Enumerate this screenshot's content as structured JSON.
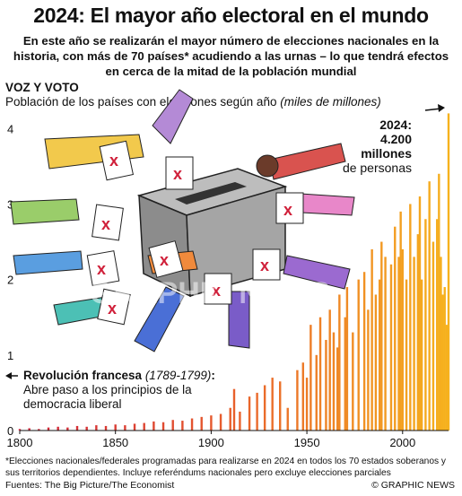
{
  "header": {
    "title": "2024: El mayor año electoral en el mundo",
    "subtitle": "En este año se realizarán el mayor número de elecciones nacionales en la historia, con más de 70 países* acudiendo a las urnas – lo que tendrá efectos en cerca de la mitad de la población mundial"
  },
  "section": {
    "label": "VOZ Y VOTO",
    "caption_main": "Población de los países con elecciones según año",
    "caption_unit": "(miles de millones)"
  },
  "annotations": {
    "y2024_head": "2024:",
    "y2024_value": "4.200",
    "y2024_unit": "millones",
    "y2024_tail": "de personas",
    "revolution_title": "Revolución francesa",
    "revolution_years": "(1789-1799)",
    "revolution_colon": ":",
    "revolution_text_1": "Abre paso a los principios de la",
    "revolution_text_2": "democracia liberal"
  },
  "footer": {
    "footnote": "*Elecciones nacionales/federales programadas para realizarse en 2024 en todos los 70 estados soberanos y sus territorios dependientes. Incluye referéndums nacionales pero excluye elecciones parciales",
    "source": "Fuentes: The Big Picture/The Economist",
    "credit": "© GRAPHIC NEWS",
    "watermark": "GRAPHIC NEWS"
  },
  "colors": {
    "bar_low": "#d0203a",
    "bar_mid": "#e8602c",
    "bar_high": "#f6b21e",
    "axis": "#111111",
    "ballot_box": "#9a9a9a"
  },
  "chart_data": {
    "type": "bar",
    "title": "Población de los países con elecciones según año",
    "ylabel": "miles de millones",
    "xlim": [
      1800,
      2024
    ],
    "ylim": [
      0,
      4.3
    ],
    "xticks": [
      "1800",
      "1850",
      "1900",
      "1950",
      "2000"
    ],
    "yticks": [
      "0",
      "1",
      "2",
      "3",
      "4"
    ],
    "series": [
      {
        "values": {
          "1800": 0.02,
          "1805": 0.03,
          "1810": 0.02,
          "1815": 0.04,
          "1820": 0.05,
          "1825": 0.04,
          "1830": 0.06,
          "1835": 0.05,
          "1840": 0.07,
          "1845": 0.06,
          "1850": 0.08,
          "1855": 0.07,
          "1860": 0.09,
          "1865": 0.1,
          "1870": 0.12,
          "1875": 0.11,
          "1880": 0.14,
          "1885": 0.13,
          "1890": 0.16,
          "1895": 0.18,
          "1900": 0.2,
          "1905": 0.22,
          "1910": 0.3,
          "1912": 0.55,
          "1915": 0.25,
          "1920": 0.45,
          "1924": 0.5,
          "1928": 0.6,
          "1932": 0.7,
          "1936": 0.65,
          "1940": 0.3,
          "1945": 0.8,
          "1948": 0.9,
          "1950": 0.7,
          "1952": 1.4,
          "1955": 1.0,
          "1957": 1.5,
          "1960": 1.2,
          "1962": 1.6,
          "1964": 1.3,
          "1966": 1.1,
          "1967": 1.8,
          "1970": 1.5,
          "1971": 1.9,
          "1974": 1.3,
          "1977": 2.0,
          "1980": 2.1,
          "1982": 1.6,
          "1984": 2.4,
          "1986": 1.8,
          "1988": 2.0,
          "1989": 2.5,
          "1991": 2.3,
          "1994": 2.2,
          "1996": 2.7,
          "1998": 2.3,
          "1999": 2.9,
          "2000": 2.4,
          "2002": 2.0,
          "2004": 3.0,
          "2006": 2.3,
          "2008": 2.6,
          "2009": 3.1,
          "2010": 2.0,
          "2012": 2.8,
          "2014": 3.3,
          "2016": 2.5,
          "2018": 2.8,
          "2019": 3.4,
          "2020": 2.3,
          "2021": 1.8,
          "2022": 1.9,
          "2023": 1.4,
          "2024": 4.2
        }
      }
    ]
  }
}
